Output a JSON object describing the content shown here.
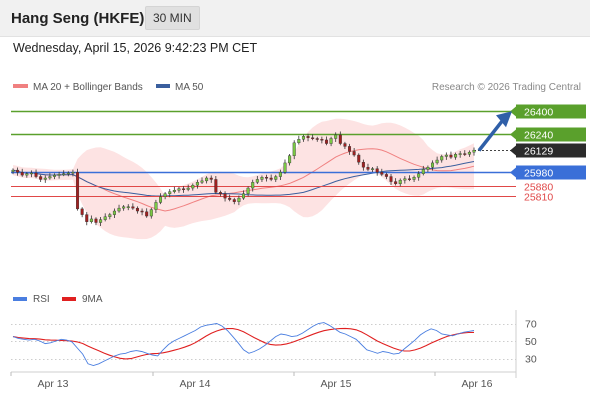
{
  "header": {
    "title": "Hang Seng (HKFE)",
    "timeframe": "30 MIN"
  },
  "datetime": "Wednesday, April 15, 2026 9:42:23 PM CET",
  "legend": {
    "ma20": "MA 20 + Bollinger Bands",
    "ma50": "MA 50",
    "rsi": "RSI",
    "rsi_ma": "9MA"
  },
  "credit": "Research © 2026 Trading Central",
  "colors": {
    "resistance": "#5aa02c",
    "pivot": "#3a6fd8",
    "support": "#e04848",
    "ma20": "#f08080",
    "ma50": "#3a5f9e",
    "band": "#fde3e3",
    "rsi": "#4a7ee0",
    "rsi_ma": "#e02020",
    "arrow": "#2f5fa8"
  },
  "chart_data": [
    {
      "type": "candlestick",
      "title": "Hang Seng (HKFE)",
      "timeframe": "30 MIN",
      "x_labels": [
        "Apr 13",
        "Apr 14",
        "Apr 15",
        "Apr 16"
      ],
      "last_price": 26129,
      "levels": [
        {
          "value": 26400,
          "kind": "resistance",
          "label": "26400"
        },
        {
          "value": 26240,
          "kind": "resistance",
          "label": "26240"
        },
        {
          "value": 25980,
          "kind": "pivot",
          "label": "25980"
        },
        {
          "value": 25880,
          "kind": "support",
          "label": "25880"
        },
        {
          "value": 25810,
          "kind": "support",
          "label": "25810"
        }
      ],
      "forecast": {
        "direction": "up",
        "target": 26400
      },
      "y_estimated_range": [
        25350,
        26520
      ],
      "closes_approx": [
        25990,
        25975,
        25955,
        25965,
        25970,
        25945,
        25925,
        25935,
        25945,
        25955,
        25960,
        25965,
        25970,
        25975,
        25720,
        25680,
        25630,
        25650,
        25625,
        25645,
        25665,
        25680,
        25705,
        25725,
        25735,
        25735,
        25725,
        25705,
        25700,
        25670,
        25715,
        25765,
        25805,
        25825,
        25840,
        25850,
        25860,
        25855,
        25865,
        25885,
        25905,
        25915,
        25935,
        25925,
        25835,
        25825,
        25795,
        25785,
        25770,
        25795,
        25825,
        25865,
        25905,
        25925,
        25940,
        25935,
        25925,
        25945,
        25975,
        26040,
        26090,
        26180,
        26205,
        26225,
        26215,
        26210,
        26205,
        26200,
        26175,
        26210,
        26235,
        26175,
        26155,
        26120,
        26095,
        26045,
        26010,
        25995,
        26000,
        25975,
        25960,
        25945,
        25910,
        25895,
        25920,
        25930,
        25925,
        25940,
        25965,
        25995,
        26010,
        26040,
        26060,
        26085,
        26095,
        26080,
        26100,
        26105,
        26100,
        26115,
        26129
      ]
    },
    {
      "type": "line",
      "title": "RSI",
      "series": [
        {
          "name": "RSI"
        },
        {
          "name": "9MA"
        }
      ],
      "y_ticks": [
        30,
        50,
        70
      ],
      "levels": [
        30,
        50,
        70
      ],
      "rsi_values": [
        55,
        53,
        52,
        51,
        52,
        50,
        47,
        48,
        50,
        52,
        51,
        49,
        42,
        35,
        24,
        22,
        24,
        27,
        30,
        33,
        35,
        36,
        38,
        39,
        38,
        36,
        34,
        33,
        40,
        46,
        50,
        53,
        56,
        59,
        62,
        66,
        68,
        69,
        70,
        67,
        62,
        55,
        48,
        40,
        36,
        38,
        41,
        45,
        50,
        55,
        58,
        57,
        55,
        56,
        59,
        63,
        67,
        70,
        71,
        68,
        64,
        60,
        58,
        55,
        52,
        46,
        40,
        38,
        36,
        38,
        37,
        35,
        36,
        41,
        46,
        51,
        57,
        61,
        64,
        62,
        58,
        57,
        56,
        58,
        60,
        61,
        62
      ]
    }
  ]
}
